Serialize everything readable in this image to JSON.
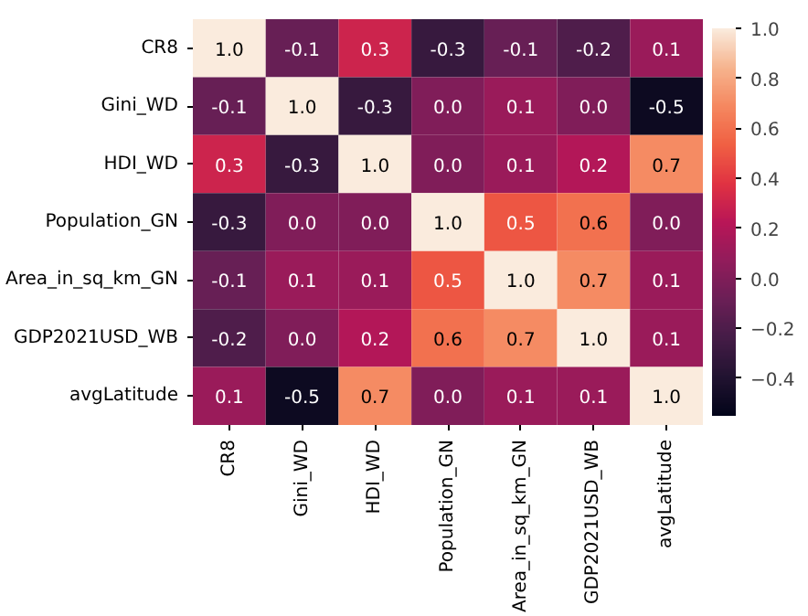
{
  "chart_data": {
    "type": "heatmap",
    "categories": [
      "CR8",
      "Gini_WD",
      "HDI_WD",
      "Population_GN",
      "Area_in_sq_km_GN",
      "GDP2021USD_WB",
      "avgLatitude"
    ],
    "y_categories": [
      "CR8",
      "Gini_WD",
      "HDI_WD",
      "Population_GN",
      "Area_in_sq_km_GN",
      "GDP2021USD_WB",
      "avgLatitude"
    ],
    "cells": [
      [
        1.0,
        -0.1,
        0.3,
        -0.3,
        -0.1,
        -0.2,
        0.1
      ],
      [
        -0.1,
        1.0,
        -0.3,
        0.0,
        0.1,
        0.0,
        -0.5
      ],
      [
        0.3,
        -0.3,
        1.0,
        0.0,
        0.1,
        0.2,
        0.7
      ],
      [
        -0.3,
        0.0,
        0.0,
        1.0,
        0.5,
        0.6,
        0.0
      ],
      [
        -0.1,
        0.1,
        0.1,
        0.5,
        1.0,
        0.7,
        0.1
      ],
      [
        -0.2,
        0.0,
        0.2,
        0.6,
        0.7,
        1.0,
        0.1
      ],
      [
        0.1,
        -0.5,
        0.7,
        0.0,
        0.1,
        0.1,
        1.0
      ]
    ],
    "cell_labels": [
      [
        "1.0",
        "-0.1",
        "0.3",
        "-0.3",
        "-0.1",
        "-0.2",
        "0.1"
      ],
      [
        "-0.1",
        "1.0",
        "-0.3",
        "0.0",
        "0.1",
        "0.0",
        "-0.5"
      ],
      [
        "0.3",
        "-0.3",
        "1.0",
        "0.0",
        "0.1",
        "0.2",
        "0.7"
      ],
      [
        "-0.3",
        "0.0",
        "0.0",
        "1.0",
        "0.5",
        "0.6",
        "0.0"
      ],
      [
        "-0.1",
        "0.1",
        "0.1",
        "0.5",
        "1.0",
        "0.7",
        "0.1"
      ],
      [
        "-0.2",
        "0.0",
        "0.2",
        "0.6",
        "0.7",
        "1.0",
        "0.1"
      ],
      [
        "0.1",
        "-0.5",
        "0.7",
        "0.0",
        "0.1",
        "0.1",
        "1.0"
      ]
    ],
    "clim": [
      -0.55,
      1.0
    ],
    "cticks": [
      {
        "value": -0.4,
        "label": "−0.4"
      },
      {
        "value": -0.2,
        "label": "−0.2"
      },
      {
        "value": 0.0,
        "label": "0.0"
      },
      {
        "value": 0.2,
        "label": "0.2"
      },
      {
        "value": 0.4,
        "label": "0.4"
      },
      {
        "value": 0.6,
        "label": "0.6"
      },
      {
        "value": 0.8,
        "label": "0.8"
      },
      {
        "value": 1.0,
        "label": "1.0"
      }
    ]
  }
}
